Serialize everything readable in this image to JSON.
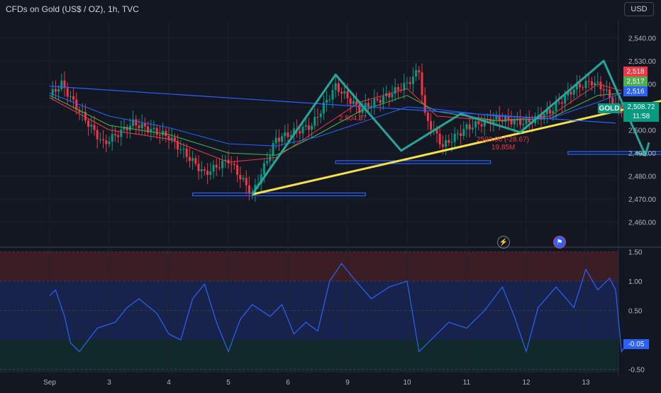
{
  "header": {
    "title": "CFDs on Gold (US$ / OZ), 1h, TVC",
    "currency": "USD"
  },
  "colors": {
    "background": "#131722",
    "up": "#089981",
    "down": "#f23645",
    "pattern": "#26a69a",
    "trendline": "#f5e04a",
    "level": "#2962ff",
    "oscillator": "#2962ff"
  },
  "badges": {
    "symbol": "GOLD",
    "price": "2,508.72",
    "countdown": "11:58",
    "level_high": "2,518",
    "level_mid": "2,517",
    "level_low": "2,516",
    "oscillator": "-0.05"
  },
  "annotations": {
    "pattern_label": "2,504.37",
    "target_label": "2503.00 (-28.67)",
    "target_volume": "19.85M"
  },
  "icons": {
    "alert": "lightning-alert-icon",
    "flag": "us-flag-icon"
  },
  "chart_data": [
    {
      "type": "candlestick",
      "title": "CFDs on Gold (US$ / OZ), 1h, TVC",
      "x_ticks": [
        "Sep",
        "3",
        "4",
        "5",
        "6",
        "9",
        "10",
        "11",
        "12",
        "13"
      ],
      "y_ticks": [
        2460,
        2470,
        2480,
        2490,
        2500,
        2510,
        2520,
        2530,
        2540
      ],
      "ylim": [
        2450,
        2550
      ],
      "grid": true,
      "price_points": [
        {
          "x": 0.0,
          "price": 2515
        },
        {
          "x": 0.2,
          "price": 2520
        },
        {
          "x": 0.5,
          "price": 2508
        },
        {
          "x": 0.9,
          "price": 2494
        },
        {
          "x": 1.4,
          "price": 2503
        },
        {
          "x": 2.0,
          "price": 2497
        },
        {
          "x": 2.6,
          "price": 2481
        },
        {
          "x": 3.0,
          "price": 2487
        },
        {
          "x": 3.4,
          "price": 2472
        },
        {
          "x": 3.8,
          "price": 2496
        },
        {
          "x": 4.4,
          "price": 2502
        },
        {
          "x": 4.8,
          "price": 2519
        },
        {
          "x": 5.2,
          "price": 2509
        },
        {
          "x": 5.6,
          "price": 2514
        },
        {
          "x": 6.0,
          "price": 2520
        },
        {
          "x": 6.2,
          "price": 2526
        },
        {
          "x": 6.3,
          "price": 2506
        },
        {
          "x": 6.6,
          "price": 2493
        },
        {
          "x": 7.0,
          "price": 2501
        },
        {
          "x": 7.5,
          "price": 2505
        },
        {
          "x": 8.0,
          "price": 2503
        },
        {
          "x": 8.4,
          "price": 2508
        },
        {
          "x": 8.8,
          "price": 2518
        },
        {
          "x": 9.1,
          "price": 2521
        },
        {
          "x": 9.3,
          "price": 2518
        },
        {
          "x": 9.5,
          "price": 2510
        },
        {
          "x": 9.6,
          "price": 2508.72
        }
      ],
      "moving_averages": [
        {
          "name": "",
          "color": "#f23645",
          "points": [
            {
              "x": 0,
              "price": 2514
            },
            {
              "x": 1,
              "price": 2500
            },
            {
              "x": 2,
              "price": 2496
            },
            {
              "x": 3,
              "price": 2486
            },
            {
              "x": 3.8,
              "price": 2488
            },
            {
              "x": 4.5,
              "price": 2500
            },
            {
              "x": 5.2,
              "price": 2512
            },
            {
              "x": 6,
              "price": 2518
            },
            {
              "x": 6.5,
              "price": 2506
            },
            {
              "x": 7.5,
              "price": 2504
            },
            {
              "x": 8.4,
              "price": 2506
            },
            {
              "x": 9.2,
              "price": 2520
            },
            {
              "x": 9.6,
              "price": 2517
            }
          ]
        },
        {
          "name": "",
          "color": "#4caf50",
          "points": [
            {
              "x": 0,
              "price": 2515
            },
            {
              "x": 1,
              "price": 2502
            },
            {
              "x": 2,
              "price": 2498
            },
            {
              "x": 3,
              "price": 2490
            },
            {
              "x": 3.8,
              "price": 2489
            },
            {
              "x": 4.5,
              "price": 2498
            },
            {
              "x": 5.2,
              "price": 2508
            },
            {
              "x": 6,
              "price": 2515
            },
            {
              "x": 6.5,
              "price": 2508
            },
            {
              "x": 7.5,
              "price": 2504
            },
            {
              "x": 8.4,
              "price": 2505
            },
            {
              "x": 9.2,
              "price": 2515
            },
            {
              "x": 9.6,
              "price": 2516
            }
          ]
        },
        {
          "name": "",
          "color": "#2962ff",
          "points": [
            {
              "x": 0,
              "price": 2516
            },
            {
              "x": 1,
              "price": 2506
            },
            {
              "x": 2,
              "price": 2501
            },
            {
              "x": 3,
              "price": 2494
            },
            {
              "x": 3.8,
              "price": 2493
            },
            {
              "x": 4.5,
              "price": 2497
            },
            {
              "x": 5.2,
              "price": 2503
            },
            {
              "x": 6,
              "price": 2510
            },
            {
              "x": 6.5,
              "price": 2509
            },
            {
              "x": 7.5,
              "price": 2506
            },
            {
              "x": 8.4,
              "price": 2505
            },
            {
              "x": 9.2,
              "price": 2512
            },
            {
              "x": 9.6,
              "price": 2516
            }
          ]
        }
      ],
      "pattern_points": [
        {
          "x": 3.4,
          "price": 2472
        },
        {
          "x": 4.8,
          "price": 2524
        },
        {
          "x": 5.9,
          "price": 2491
        },
        {
          "x": 6.9,
          "price": 2507
        },
        {
          "x": 7.9,
          "price": 2499
        },
        {
          "x": 9.3,
          "price": 2530
        },
        {
          "x": 10.0,
          "price": 2489
        }
      ],
      "trendlines": [
        {
          "kind": "trend",
          "from": {
            "x": 3.4,
            "price": 2472
          },
          "to": {
            "x": 10.5,
            "price": 2514
          }
        },
        {
          "kind": "descending",
          "from": {
            "x": 0.0,
            "price": 2519
          },
          "to": {
            "x": 9.5,
            "price": 2503
          }
        }
      ],
      "support_levels": [
        {
          "price": 2472,
          "from_x": 2.4,
          "to_x": 5.3
        },
        {
          "price": 2486,
          "from_x": 4.8,
          "to_x": 7.4
        },
        {
          "price": 2490,
          "from_x": 8.7,
          "to_x": 10.4
        }
      ]
    },
    {
      "type": "line",
      "y_ticks": [
        -0.5,
        0.5,
        1.0,
        1.5
      ],
      "ylim": [
        -0.55,
        1.5
      ],
      "zones": [
        {
          "from": 1.0,
          "to": 1.5,
          "color": "#3b1d26"
        },
        {
          "from": 0.0,
          "to": 1.0,
          "color": "#17234a"
        },
        {
          "from": -0.55,
          "to": 0.0,
          "color": "#12292b"
        }
      ],
      "values": [
        {
          "x": 0,
          "v": 0.75
        },
        {
          "x": 0.1,
          "v": 0.85
        },
        {
          "x": 0.25,
          "v": 0.4
        },
        {
          "x": 0.35,
          "v": -0.05
        },
        {
          "x": 0.5,
          "v": -0.2
        },
        {
          "x": 0.8,
          "v": 0.2
        },
        {
          "x": 1.1,
          "v": 0.3
        },
        {
          "x": 1.3,
          "v": 0.55
        },
        {
          "x": 1.5,
          "v": 0.7
        },
        {
          "x": 1.8,
          "v": 0.45
        },
        {
          "x": 2.0,
          "v": 0.1
        },
        {
          "x": 2.2,
          "v": 0.0
        },
        {
          "x": 2.4,
          "v": 0.7
        },
        {
          "x": 2.6,
          "v": 0.95
        },
        {
          "x": 2.8,
          "v": 0.3
        },
        {
          "x": 3.0,
          "v": -0.2
        },
        {
          "x": 3.2,
          "v": 0.35
        },
        {
          "x": 3.4,
          "v": 0.6
        },
        {
          "x": 3.7,
          "v": 0.4
        },
        {
          "x": 3.9,
          "v": 0.6
        },
        {
          "x": 4.1,
          "v": 0.1
        },
        {
          "x": 4.3,
          "v": 0.3
        },
        {
          "x": 4.5,
          "v": 0.15
        },
        {
          "x": 4.7,
          "v": 1.0
        },
        {
          "x": 4.9,
          "v": 1.3
        },
        {
          "x": 5.1,
          "v": 1.05
        },
        {
          "x": 5.4,
          "v": 0.7
        },
        {
          "x": 5.7,
          "v": 0.9
        },
        {
          "x": 6.0,
          "v": 1.0
        },
        {
          "x": 6.1,
          "v": 0.4
        },
        {
          "x": 6.2,
          "v": -0.2
        },
        {
          "x": 6.4,
          "v": 0.0
        },
        {
          "x": 6.7,
          "v": 0.3
        },
        {
          "x": 7.0,
          "v": 0.2
        },
        {
          "x": 7.3,
          "v": 0.5
        },
        {
          "x": 7.6,
          "v": 0.9
        },
        {
          "x": 7.8,
          "v": 0.4
        },
        {
          "x": 8.0,
          "v": -0.2
        },
        {
          "x": 8.2,
          "v": 0.55
        },
        {
          "x": 8.5,
          "v": 0.9
        },
        {
          "x": 8.8,
          "v": 0.55
        },
        {
          "x": 9.0,
          "v": 1.2
        },
        {
          "x": 9.2,
          "v": 0.85
        },
        {
          "x": 9.4,
          "v": 1.05
        },
        {
          "x": 9.5,
          "v": 0.85
        },
        {
          "x": 9.6,
          "v": -0.2
        },
        {
          "x": 9.7,
          "v": -0.05
        }
      ]
    }
  ]
}
